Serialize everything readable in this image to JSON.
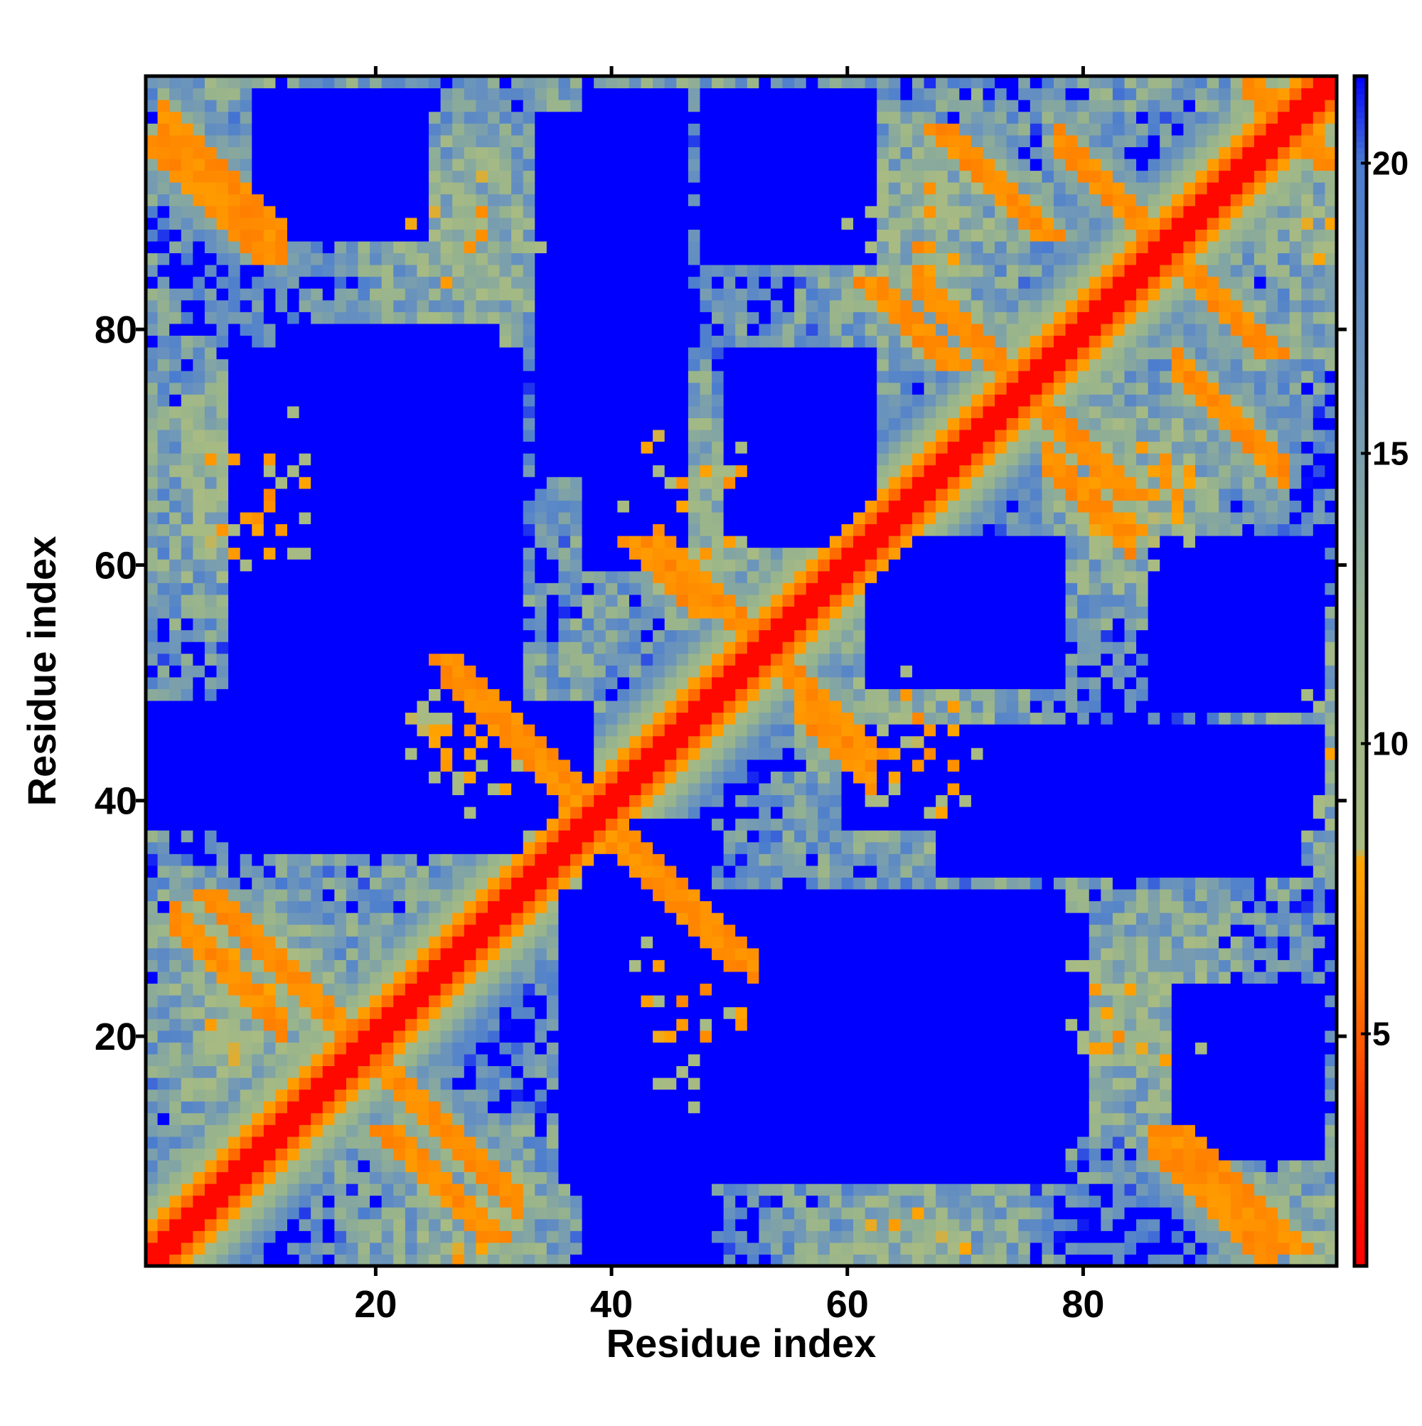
{
  "chart_data": {
    "type": "heatmap",
    "title": "",
    "xlabel": "Residue index",
    "ylabel": "Residue index",
    "n": 101,
    "x_range": [
      0.5,
      101.5
    ],
    "y_range": [
      0.5,
      101.5
    ],
    "x_ticks": [
      20,
      40,
      60,
      80
    ],
    "y_ticks": [
      20,
      40,
      60,
      80
    ],
    "colorbar": {
      "range": [
        1,
        21.5
      ],
      "ticks": [
        5,
        10,
        15,
        20
      ],
      "stops": [
        {
          "value": 1,
          "color": "#ff0000"
        },
        {
          "value": 3.5,
          "color": "#ff2a00"
        },
        {
          "value": 6,
          "color": "#ff7f00"
        },
        {
          "value": 8,
          "color": "#ffa500"
        },
        {
          "value": 8.2,
          "color": "#a9bb82"
        },
        {
          "value": 12,
          "color": "#98b48c"
        },
        {
          "value": 16,
          "color": "#6f97b9"
        },
        {
          "value": 20,
          "color": "#4a7cd0"
        },
        {
          "value": 21.5,
          "color": "#0000ff"
        }
      ]
    },
    "description_values": "Symmetric residue-residue distance matrix (Å): diagonal ≈1–3, helix/strand contact bands ≈5–8, neighbouring regions ≈10–18, distant pairs >20 (saturated blue).",
    "diagonal_value": 1.5,
    "max_value": 21.5,
    "contact_bands": [
      {
        "orientation": "anti",
        "i_range": [
          2,
          12
        ],
        "j_sum": 100,
        "value": 6.0
      },
      {
        "orientation": "anti",
        "i_range": [
          20,
          32
        ],
        "j_sum": 38,
        "value": 6.0
      },
      {
        "orientation": "anti",
        "i_range": [
          3,
          12
        ],
        "j_sum": 33,
        "value": 6.0
      },
      {
        "orientation": "anti",
        "i_range": [
          26,
          36
        ],
        "j_sum": 77,
        "value": 6.0
      },
      {
        "orientation": "anti",
        "i_range": [
          41,
          52
        ],
        "j_sum": 78,
        "value": 6.0
      },
      {
        "orientation": "anti",
        "i_range": [
          44,
          55
        ],
        "j_sum": 106,
        "value": 6.0
      },
      {
        "orientation": "anti",
        "i_range": [
          56,
          62
        ],
        "j_sum": 104,
        "value": 6.0
      },
      {
        "orientation": "anti",
        "i_range": [
          66,
          75
        ],
        "j_sum": 150,
        "value": 6.0
      },
      {
        "orientation": "anti",
        "i_range": [
          77,
          84
        ],
        "j_sum": 146,
        "value": 6.0
      },
      {
        "orientation": "anti",
        "i_range": [
          86,
          96
        ],
        "j_sum": 97,
        "value": 6.0
      },
      {
        "orientation": "anti",
        "i_range": [
          88,
          97
        ],
        "j_sum": 165,
        "value": 6.0
      },
      {
        "orientation": "anti",
        "i_range": [
          78,
          85
        ],
        "j_sum": 174,
        "value": 6.0
      },
      {
        "orientation": "anti",
        "i_range": [
          94,
          100
        ],
        "j_sum": 195,
        "value": 6.0
      }
    ],
    "blue_blocks": [
      {
        "i_range": [
          8,
          32
        ],
        "j_range": [
          36,
          78
        ],
        "value": 21.5
      },
      {
        "i_range": [
          1,
          38
        ],
        "j_range": [
          38,
          48
        ],
        "value": 21.5
      },
      {
        "i_range": [
          40,
          80
        ],
        "j_range": [
          12,
          30
        ],
        "value": 21.5
      },
      {
        "i_range": [
          60,
          100
        ],
        "j_range": [
          38,
          46
        ],
        "value": 21.5
      },
      {
        "i_range": [
          34,
          46
        ],
        "j_range": [
          68,
          98
        ],
        "value": 21.5
      },
      {
        "i_range": [
          62,
          78
        ],
        "j_range": [
          50,
          62
        ],
        "value": 21.5
      },
      {
        "i_range": [
          86,
          100
        ],
        "j_range": [
          48,
          62
        ],
        "value": 21.5
      },
      {
        "i_range": [
          10,
          24
        ],
        "j_range": [
          88,
          100
        ],
        "value": 21.5
      }
    ]
  }
}
